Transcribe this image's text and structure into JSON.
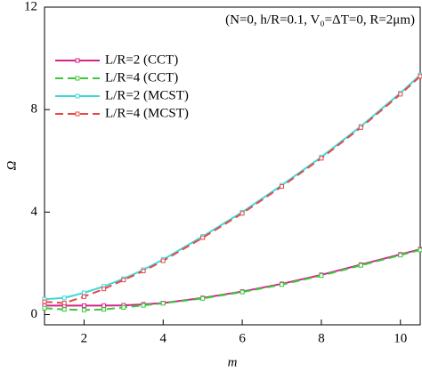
{
  "chart_data": {
    "type": "line",
    "annotation": "(N=0, h/R=0.1, V₀=ΔT=0, R=2μm)",
    "x_label": "m",
    "y_label": "Ω",
    "x": [
      1,
      1.5,
      2,
      2.5,
      3,
      3.5,
      4,
      5,
      6,
      7,
      8,
      9,
      10,
      10.5
    ],
    "series": [
      {
        "name": "L/R=2 (CCT)",
        "color": "#d4248c",
        "dash": false,
        "values": [
          0.35,
          0.35,
          0.35,
          0.35,
          0.36,
          0.4,
          0.45,
          0.65,
          0.9,
          1.2,
          1.55,
          1.95,
          2.35,
          2.55
        ]
      },
      {
        "name": "L/R=4 (CCT)",
        "color": "#3cc83c",
        "dash": true,
        "values": [
          0.25,
          0.2,
          0.18,
          0.2,
          0.28,
          0.36,
          0.44,
          0.63,
          0.88,
          1.17,
          1.52,
          1.92,
          2.32,
          2.52
        ]
      },
      {
        "name": "L/R=2 (MCST)",
        "color": "#3ed8d8",
        "dash": false,
        "values": [
          0.6,
          0.65,
          0.85,
          1.1,
          1.4,
          1.75,
          2.15,
          3.05,
          4.0,
          5.05,
          6.15,
          7.35,
          8.65,
          9.35
        ]
      },
      {
        "name": "L/R=4 (MCST)",
        "color": "#e84848",
        "dash": true,
        "values": [
          0.5,
          0.45,
          0.7,
          1.0,
          1.35,
          1.7,
          2.1,
          3.0,
          3.95,
          5.0,
          6.1,
          7.3,
          8.6,
          9.3
        ]
      }
    ],
    "xlim": [
      1,
      10.5
    ],
    "ylim": [
      -0.4,
      12
    ],
    "xticks": [
      2,
      4,
      6,
      8,
      10
    ],
    "yticks": [
      0,
      4,
      8,
      12
    ]
  }
}
